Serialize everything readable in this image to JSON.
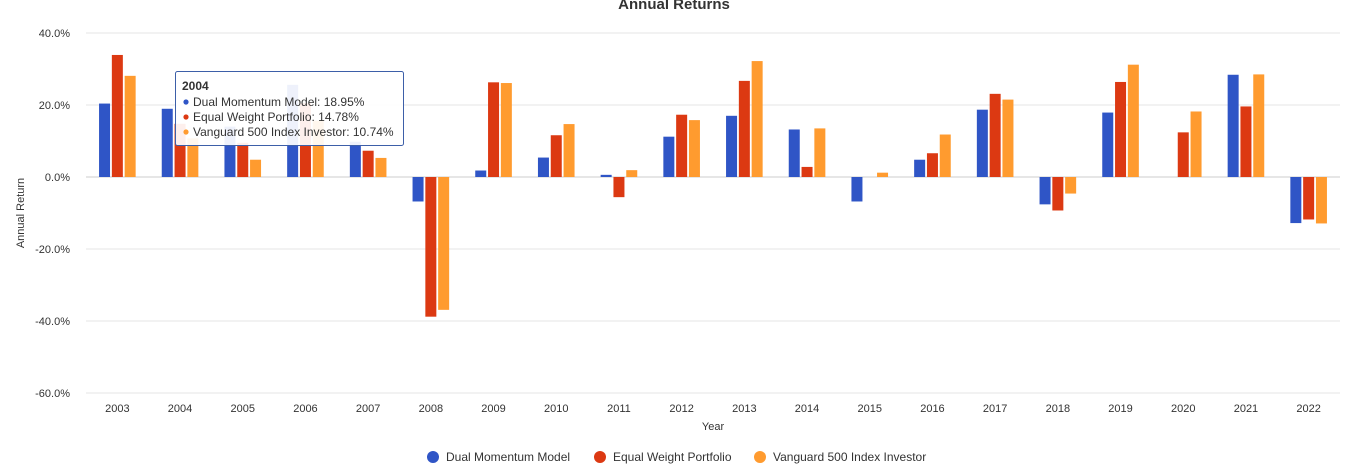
{
  "colors": {
    "series": [
      "#2f55c6",
      "#dc3912",
      "#ff9b2f"
    ],
    "grid": "#e6e6e6",
    "zero_line": "#cccccc",
    "tooltip_border": "#3d5fa8"
  },
  "chart_data": {
    "type": "bar",
    "title": "Annual Returns",
    "xlabel": "Year",
    "ylabel": "Annual Return",
    "ylim": [
      -60,
      40
    ],
    "yticks": [
      40,
      20,
      0,
      -20,
      -40,
      -60
    ],
    "ytick_labels": [
      "40.0%",
      "20.0%",
      "0.0%",
      "-20.0%",
      "-40.0%",
      "-60.0%"
    ],
    "grid": true,
    "legend_position": "bottom",
    "categories": [
      "2003",
      "2004",
      "2005",
      "2006",
      "2007",
      "2008",
      "2009",
      "2010",
      "2011",
      "2012",
      "2013",
      "2014",
      "2015",
      "2016",
      "2017",
      "2018",
      "2019",
      "2020",
      "2021",
      "2022"
    ],
    "series": [
      {
        "name": "Dual Momentum Model",
        "values": [
          20.4,
          18.95,
          14.0,
          25.6,
          9.8,
          -6.8,
          1.8,
          5.4,
          0.6,
          11.2,
          17.0,
          13.2,
          -6.8,
          4.8,
          18.7,
          -7.6,
          17.9,
          0.0,
          28.4,
          -12.8
        ]
      },
      {
        "name": "Equal Weight Portfolio",
        "values": [
          33.9,
          14.78,
          9.5,
          20.5,
          7.3,
          -38.8,
          26.3,
          11.6,
          -5.6,
          17.3,
          26.7,
          2.8,
          0.0,
          6.6,
          23.1,
          -9.3,
          26.4,
          12.4,
          19.6,
          -11.8
        ]
      },
      {
        "name": "Vanguard 500 Index Investor",
        "values": [
          28.1,
          10.74,
          4.8,
          15.6,
          5.3,
          -36.9,
          26.1,
          14.7,
          1.9,
          15.8,
          32.2,
          13.5,
          1.2,
          11.8,
          21.5,
          -4.6,
          31.2,
          18.2,
          28.5,
          -12.9
        ]
      }
    ],
    "tooltip": {
      "title": "2004",
      "lines": [
        "Dual Momentum Model: 18.95%",
        "Equal Weight Portfolio: 14.78%",
        "Vanguard 500 Index Investor: 10.74%"
      ]
    }
  }
}
